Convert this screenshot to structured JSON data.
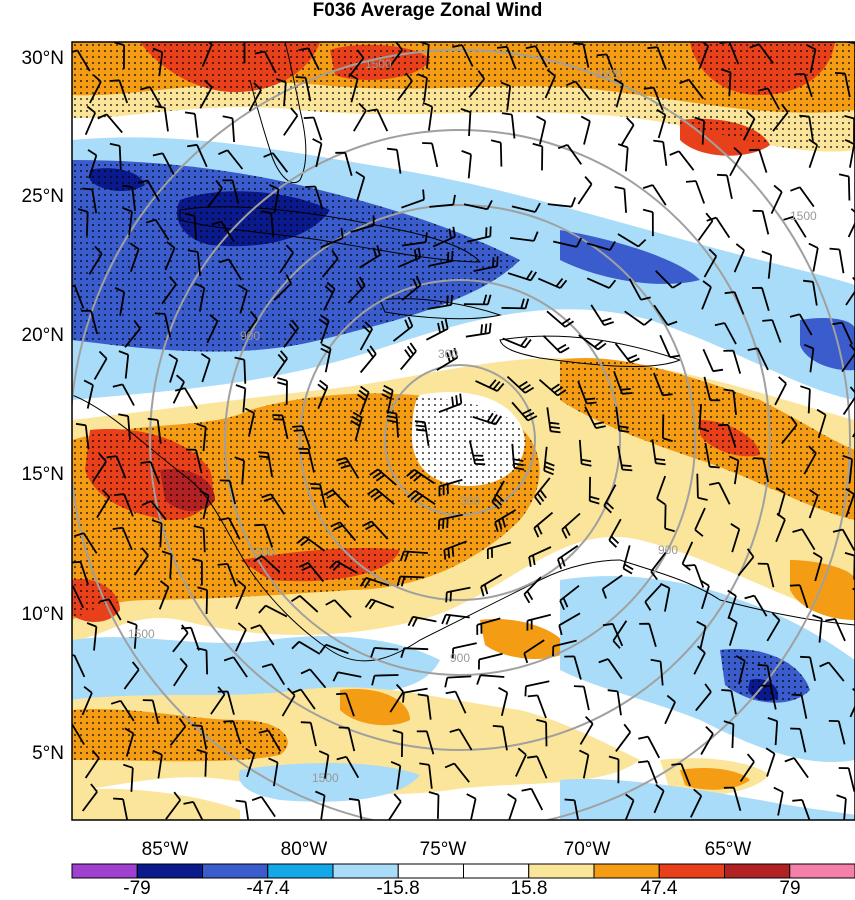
{
  "title": "F036 Average Zonal Wind",
  "lat_labels": [
    "30°N",
    "25°N",
    "20°N",
    "15°N",
    "10°N",
    "5°N"
  ],
  "lon_labels": [
    "85°W",
    "80°W",
    "75°W",
    "70°W",
    "65°W"
  ],
  "range_ring_labels": [
    "300",
    "300",
    "300",
    "900",
    "900",
    "900",
    "1500",
    "1500",
    "1500",
    "1500",
    "1500"
  ],
  "colorbar": {
    "colors": [
      "#a040d0",
      "#0a1a8c",
      "#3a5ccc",
      "#14a8e8",
      "#a8dcf8",
      "#ffffff",
      "#ffffff",
      "#fbe59a",
      "#f49c14",
      "#e8401a",
      "#b22222",
      "#f47fa8"
    ],
    "tick_labels": [
      "-79",
      "-47.4",
      "-15.8",
      "15.8",
      "47.4",
      "79"
    ]
  },
  "colors": {
    "strong_easterly": "#0a1a8c",
    "easterly": "#3a5ccc",
    "weak_easterly": "#a8dcf8",
    "weak_westerly": "#fbe59a",
    "westerly": "#f49c14",
    "strong_westerly": "#e8401a",
    "ring": "#a0a0a0"
  }
}
